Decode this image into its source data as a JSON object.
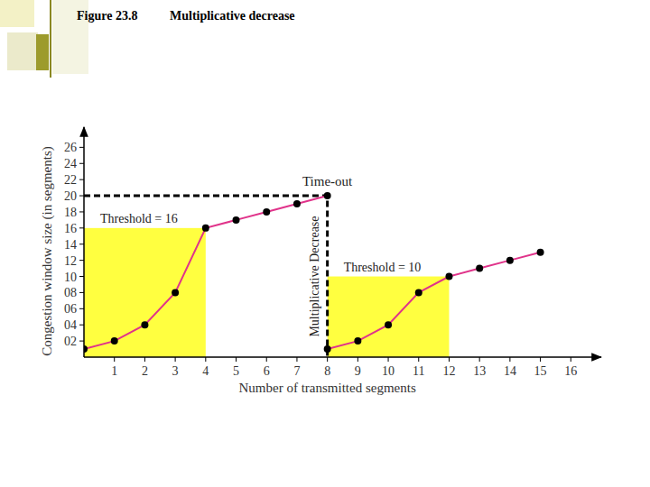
{
  "chart_data": {
    "type": "line",
    "title": "Figure 23.8",
    "subtitle": "Multiplicative decrease",
    "x_label": "Number of transmitted segments",
    "y_label": "Congestion window size (in segments)",
    "xlim": [
      0,
      17
    ],
    "ylim": [
      0,
      28.5
    ],
    "xticks": [
      1,
      2,
      3,
      4,
      5,
      6,
      7,
      8,
      9,
      10,
      11,
      12,
      13,
      14,
      15,
      16
    ],
    "yticks": [
      {
        "value": 2,
        "label": "02"
      },
      {
        "value": 4,
        "label": "04"
      },
      {
        "value": 6,
        "label": "06"
      },
      {
        "value": 8,
        "label": "08"
      },
      10,
      12,
      14,
      16,
      18,
      20,
      22,
      24,
      26
    ],
    "grid": false,
    "series": [
      {
        "color": "#e0338a",
        "marker": "circle",
        "x": [
          0,
          1,
          2,
          3,
          4,
          5,
          6,
          7,
          8
        ],
        "values": [
          1,
          2,
          4,
          8,
          16,
          17,
          18,
          19,
          20
        ]
      },
      {
        "color": "#e0338a",
        "marker": "circle",
        "x": [
          8,
          9,
          10,
          11,
          12,
          13,
          14,
          15
        ],
        "values": [
          1,
          2,
          4,
          8,
          10,
          11,
          12,
          13
        ]
      }
    ],
    "thresholds": [
      {
        "label": "Threshold = 16",
        "value": 16,
        "x": [
          0,
          4
        ],
        "color": "#ffff40"
      },
      {
        "label": "Threshold = 10",
        "value": 10,
        "x": [
          8,
          12
        ],
        "color": "#ffff40"
      }
    ],
    "timeout": {
      "label": "Time-out",
      "x": 8,
      "y": 20
    },
    "decrease_label": "Multiplicative Decrease"
  }
}
